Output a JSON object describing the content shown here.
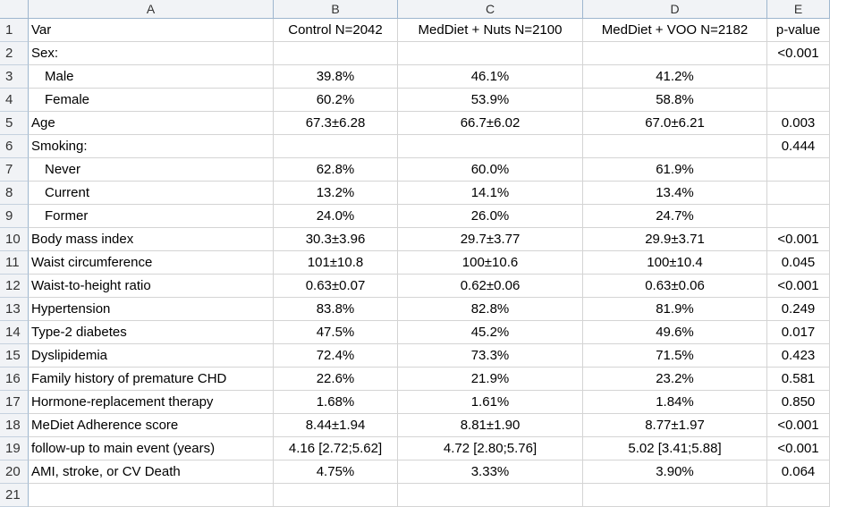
{
  "columns": [
    "A",
    "B",
    "C",
    "D",
    "E"
  ],
  "rows": [
    {
      "n": "1",
      "a": "Var",
      "b": "Control   N=2042",
      "c": "MedDiet + Nuts   N=2100",
      "d": "MedDiet + VOO   N=2182",
      "e": "p-value",
      "indent": false
    },
    {
      "n": "2",
      "a": "Sex:",
      "b": "",
      "c": "",
      "d": "",
      "e": "<0.001",
      "indent": false
    },
    {
      "n": "3",
      "a": "Male",
      "b": "39.8%",
      "c": "46.1%",
      "d": "41.2%",
      "e": "",
      "indent": true
    },
    {
      "n": "4",
      "a": "Female",
      "b": "60.2%",
      "c": "53.9%",
      "d": "58.8%",
      "e": "",
      "indent": true
    },
    {
      "n": "5",
      "a": "Age",
      "b": "67.3±6.28",
      "c": "66.7±6.02",
      "d": "67.0±6.21",
      "e": "0.003",
      "indent": false
    },
    {
      "n": "6",
      "a": "Smoking:",
      "b": "",
      "c": "",
      "d": "",
      "e": "0.444",
      "indent": false
    },
    {
      "n": "7",
      "a": "Never",
      "b": "62.8%",
      "c": "60.0%",
      "d": "61.9%",
      "e": "",
      "indent": true
    },
    {
      "n": "8",
      "a": "Current",
      "b": "13.2%",
      "c": "14.1%",
      "d": "13.4%",
      "e": "",
      "indent": true
    },
    {
      "n": "9",
      "a": "Former",
      "b": "24.0%",
      "c": "26.0%",
      "d": "24.7%",
      "e": "",
      "indent": true
    },
    {
      "n": "10",
      "a": "Body mass index",
      "b": "30.3±3.96",
      "c": "29.7±3.77",
      "d": "29.9±3.71",
      "e": "<0.001",
      "indent": false
    },
    {
      "n": "11",
      "a": "Waist circumference",
      "b": "101±10.8",
      "c": "100±10.6",
      "d": "100±10.4",
      "e": "0.045",
      "indent": false
    },
    {
      "n": "12",
      "a": "Waist-to-height ratio",
      "b": "0.63±0.07",
      "c": "0.62±0.06",
      "d": "0.63±0.06",
      "e": "<0.001",
      "indent": false
    },
    {
      "n": "13",
      "a": "Hypertension",
      "b": "83.8%",
      "c": "82.8%",
      "d": "81.9%",
      "e": "0.249",
      "indent": false
    },
    {
      "n": "14",
      "a": "Type-2 diabetes",
      "b": "47.5%",
      "c": "45.2%",
      "d": "49.6%",
      "e": "0.017",
      "indent": false
    },
    {
      "n": "15",
      "a": "Dyslipidemia",
      "b": "72.4%",
      "c": "73.3%",
      "d": "71.5%",
      "e": "0.423",
      "indent": false
    },
    {
      "n": "16",
      "a": "Family history of premature CHD",
      "b": "22.6%",
      "c": "21.9%",
      "d": "23.2%",
      "e": "0.581",
      "indent": false
    },
    {
      "n": "17",
      "a": "Hormone-replacement therapy",
      "b": "1.68%",
      "c": "1.61%",
      "d": "1.84%",
      "e": "0.850",
      "indent": false
    },
    {
      "n": "18",
      "a": "MeDiet Adherence score",
      "b": "8.44±1.94",
      "c": "8.81±1.90",
      "d": "8.77±1.97",
      "e": "<0.001",
      "indent": false
    },
    {
      "n": "19",
      "a": "follow-up to main event (years)",
      "b": "4.16 [2.72;5.62]",
      "c": "4.72 [2.80;5.76]",
      "d": "5.02 [3.41;5.88]",
      "e": "<0.001",
      "indent": false
    },
    {
      "n": "20",
      "a": "AMI, stroke, or CV Death",
      "b": "4.75%",
      "c": "3.33%",
      "d": "3.90%",
      "e": "0.064",
      "indent": false
    },
    {
      "n": "21",
      "a": "",
      "b": "",
      "c": "",
      "d": "",
      "e": "",
      "indent": false
    }
  ]
}
